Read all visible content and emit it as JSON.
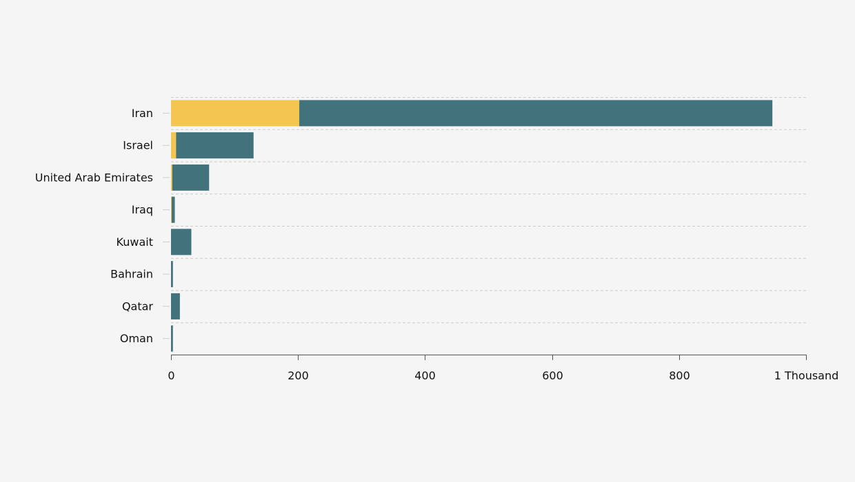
{
  "chart_data": {
    "type": "bar",
    "orientation": "horizontal",
    "stacked": true,
    "title": "",
    "xlabel": "",
    "ylabel": "",
    "categories": [
      "Iran",
      "Israel",
      "United Arab Emirates",
      "Iraq",
      "Kuwait",
      "Bahrain",
      "Qatar",
      "Oman"
    ],
    "series": [
      {
        "values": [
          202,
          8,
          2,
          1,
          0,
          0,
          0,
          0
        ],
        "color": "#f2c650"
      },
      {
        "values": [
          745,
          122,
          58,
          5,
          32,
          3,
          14,
          3
        ],
        "color": "#42727c"
      }
    ],
    "xlim": [
      0,
      1000
    ],
    "xticks": [
      {
        "value": 0,
        "label": "0"
      },
      {
        "value": 200,
        "label": "200"
      },
      {
        "value": 400,
        "label": "400"
      },
      {
        "value": 600,
        "label": "600"
      },
      {
        "value": 800,
        "label": "800"
      },
      {
        "value": 1000,
        "label": "1 Thousand"
      }
    ],
    "grid": {
      "horizontal_dashed": true
    },
    "colors": {
      "background": "#f5f5f5",
      "grid": "#cccccc",
      "axis": "#555555"
    }
  }
}
